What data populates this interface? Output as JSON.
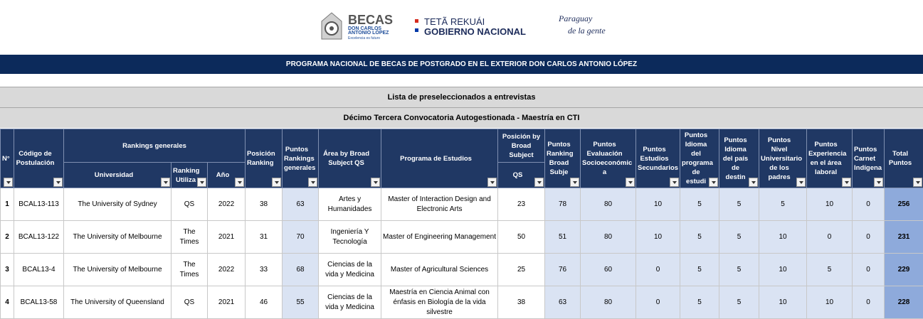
{
  "logos": {
    "becas": "BECAS",
    "becas_sub1": "DON CARLOS",
    "becas_sub2": "ANTONIO LÓPEZ",
    "becas_tagline": "Excelencia es futuro",
    "gov_line1": "TETÃ REKUÁI",
    "gov_line2": "GOBIERNO NACIONAL",
    "slogan_line1": "Paraguay",
    "slogan_line2": "de la gente"
  },
  "banner": "PROGRAMA NACIONAL DE BECAS DE POSTGRADO EN EL EXTERIOR DON CARLOS ANTONIO LÓPEZ",
  "list_title": "Lista de preseleccionados a entrevistas",
  "call_title": "Décimo Tercera Convocatoria Autogestionada - Maestría en CTI",
  "table": {
    "group_headers": [
      "Rankings generales",
      "Posición by Broad Subject"
    ],
    "columns": [
      "N°",
      "Código de Postulación",
      "Universidad",
      "Ranking Utiliza",
      "Año",
      "Posición Ranking",
      "Puntos Rankings generales",
      "Área by Broad Subject QS",
      "Programa de Estudios",
      "QS",
      "Puntos Ranking Broad Subje",
      "Puntos Evaluación Socioeconómic a",
      "Puntos Estudios Secundarios",
      "Puntos Idioma del programa de estudi",
      "Puntos Idioma del país de destin",
      "Puntos Nivel Universitario de los padres",
      "Puntos Experiencia en el área laboral",
      "Puntos Carnet Indígena",
      "Total Puntos"
    ],
    "rows": [
      [
        1,
        "BCAL13-113",
        "The University of Sydney",
        "QS",
        2022,
        38,
        63,
        "Artes y Humanidades",
        "Master of Interaction Design and Electronic Arts",
        23,
        78,
        80,
        10,
        5,
        5,
        5,
        10,
        0,
        256
      ],
      [
        2,
        "BCAL13-122",
        "The University of Melbourne",
        "The Times",
        2021,
        31,
        70,
        "Ingeniería Y Tecnología",
        "Master of Engineering Management",
        50,
        51,
        80,
        10,
        5,
        5,
        10,
        0,
        0,
        231
      ],
      [
        3,
        "BCAL13-4",
        "The University of Melbourne",
        "The Times",
        2022,
        33,
        68,
        "Ciencias de la vida y Medicina",
        "Master of Agricultural Sciences",
        25,
        76,
        60,
        0,
        5,
        5,
        10,
        5,
        0,
        229
      ],
      [
        4,
        "BCAL13-58",
        "The University of Queensland",
        "QS",
        2021,
        46,
        55,
        "Ciencias de la vida y Medicina",
        "Maestría en Ciencia Animal con énfasis en Biología de la vida silvestre",
        38,
        63,
        80,
        0,
        5,
        5,
        10,
        10,
        0,
        228
      ]
    ]
  }
}
